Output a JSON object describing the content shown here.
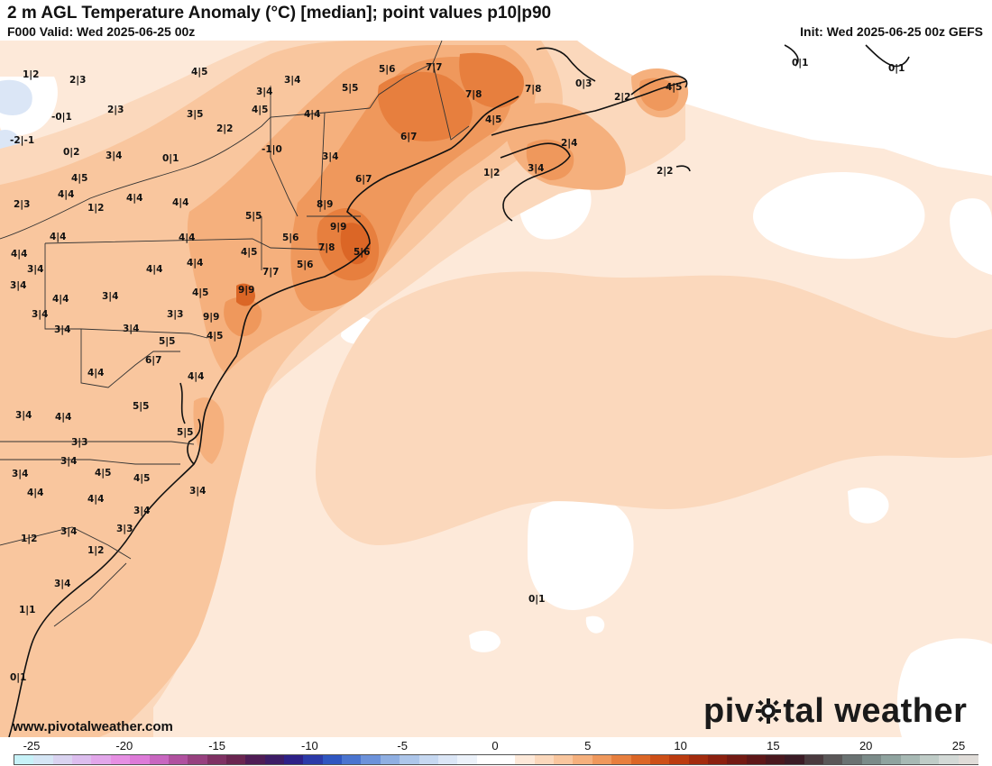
{
  "header": {
    "title": "2 m AGL Temperature Anomaly (°C) [median]; point values p10|p90",
    "valid": "F000 Valid: Wed 2025-06-25 00z",
    "init": "Init: Wed 2025-06-25 00z GEFS"
  },
  "footer": {
    "url": "www.pivotalweather.com",
    "logo_left": "piv",
    "logo_right": "tal weather"
  },
  "colorbar": {
    "min": -25,
    "max": 25,
    "ticks": [
      "-25",
      "-20",
      "-15",
      "-10",
      "-5",
      "0",
      "5",
      "10",
      "15",
      "20",
      "25"
    ],
    "colors": [
      "#c7f2f8",
      "#d5e6f5",
      "#d9d3f0",
      "#dcbdee",
      "#e2a6ea",
      "#e68fe3",
      "#dd7ad8",
      "#c866c0",
      "#b0509f",
      "#97407f",
      "#7f3163",
      "#6a2550",
      "#4f1c55",
      "#3d1c66",
      "#2d2087",
      "#2b3aa8",
      "#2f56c0",
      "#4a74cf",
      "#6c92da",
      "#8fafe2",
      "#adc6ea",
      "#c6d8f1",
      "#dbe6f6",
      "#ecf2fa",
      "#ffffff",
      "#ffffff",
      "#fde9d9",
      "#fbd8bc",
      "#f9c69e",
      "#f5b07d",
      "#ef985c",
      "#e77f3e",
      "#db6626",
      "#cd4f17",
      "#bb3b0f",
      "#a32b0e",
      "#8b200f",
      "#731a13",
      "#5e1718",
      "#4a181e",
      "#3b1b25",
      "#4a3a3e",
      "#5a5758",
      "#6a7272",
      "#7b8b89",
      "#8fa39f",
      "#a7b9b4",
      "#bfccc7",
      "#d3d9d6",
      "#e0dcd8"
    ]
  },
  "point_values": [
    "1|2",
    "2|3",
    "4|5",
    "3|4",
    "5|6",
    "7|7",
    "7|8",
    "7|8",
    "0|3",
    "2|2",
    "4|5",
    "0|1",
    "0|1",
    "-0|1",
    "2|3",
    "3|4",
    "3|5",
    "4|5",
    "4|4",
    "5|5",
    "4|5",
    "-2|-1",
    "2|2",
    "6|7",
    "2|4",
    "0|2",
    "3|4",
    "0|1",
    "-1|0",
    "3|4",
    "1|2",
    "3|4",
    "2|2",
    "4|5",
    "4|4",
    "4|4",
    "4|4",
    "6|7",
    "2|3",
    "1|2",
    "8|9",
    "5|5",
    "9|9",
    "4|4",
    "4|4",
    "5|6",
    "7|8",
    "5|6",
    "4|4",
    "4|5",
    "4|4",
    "3|4",
    "5|6",
    "7|7",
    "3|4",
    "4|4",
    "3|4",
    "4|5",
    "9|9",
    "4|4",
    "3|4",
    "3|3",
    "9|9",
    "3|4",
    "3|4",
    "5|5",
    "4|5",
    "6|7",
    "4|4",
    "4|4",
    "3|4",
    "4|4",
    "5|5",
    "5|5",
    "3|3",
    "3|4",
    "4|5",
    "4|5",
    "3|4",
    "4|4",
    "4|4",
    "3|4",
    "3|4",
    "3|3",
    "3|4",
    "1|2",
    "3|4",
    "1|2",
    "1|1",
    "0|1",
    "0|1"
  ]
}
